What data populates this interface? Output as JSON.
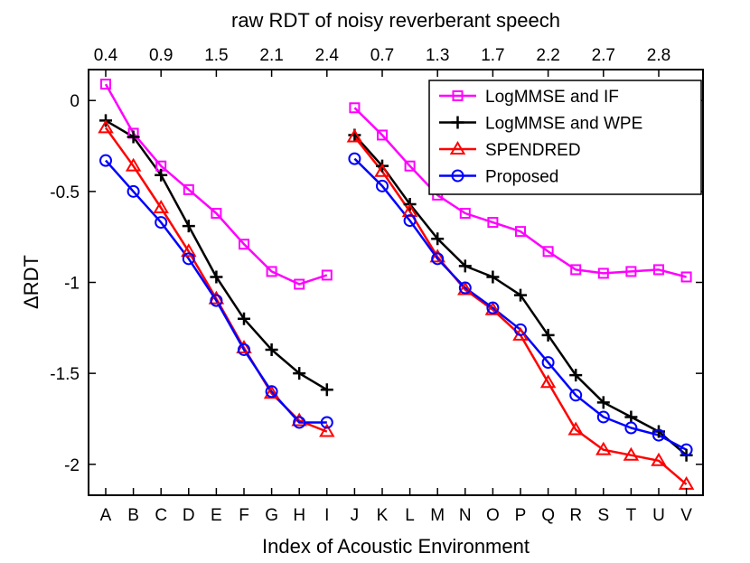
{
  "chart_data": {
    "type": "line",
    "title": "",
    "xlabel": "Index of Acoustic Environment",
    "ylabel": "ΔRDT",
    "top_xlabel": "raw RDT of noisy reverberant speech",
    "categories": [
      "A",
      "B",
      "C",
      "D",
      "E",
      "F",
      "G",
      "H",
      "I",
      "J",
      "K",
      "L",
      "M",
      "N",
      "O",
      "P",
      "Q",
      "R",
      "S",
      "T",
      "U",
      "V"
    ],
    "top_tick_labels": [
      {
        "category": "A",
        "label": "0.4"
      },
      {
        "category": "C",
        "label": "0.9"
      },
      {
        "category": "E",
        "label": "1.5"
      },
      {
        "category": "G",
        "label": "2.1"
      },
      {
        "category": "I",
        "label": "2.4"
      },
      {
        "category": "K",
        "label": "0.7"
      },
      {
        "category": "M",
        "label": "1.3"
      },
      {
        "category": "O",
        "label": "1.7"
      },
      {
        "category": "Q",
        "label": "2.2"
      },
      {
        "category": "S",
        "label": "2.7"
      },
      {
        "category": "U",
        "label": "2.8"
      }
    ],
    "ylim": [
      -2.17,
      0.17
    ],
    "yticks": [
      {
        "value": 0,
        "label": "0"
      },
      {
        "value": -0.5,
        "label": "-0.5"
      },
      {
        "value": -1,
        "label": "-1"
      },
      {
        "value": -1.5,
        "label": "-1.5"
      },
      {
        "value": -2,
        "label": "-2"
      }
    ],
    "segments": [
      [
        0,
        8
      ],
      [
        9,
        21
      ]
    ],
    "legend_position": "top-right",
    "series": [
      {
        "name": "LogMMSE and IF",
        "color": "#ff00ff",
        "marker": "square",
        "values": [
          0.09,
          -0.18,
          -0.36,
          -0.49,
          -0.62,
          -0.79,
          -0.94,
          -1.01,
          -0.96,
          -0.04,
          -0.19,
          -0.36,
          -0.52,
          -0.62,
          -0.67,
          -0.72,
          -0.83,
          -0.93,
          -0.95,
          -0.94,
          -0.93,
          -0.97
        ]
      },
      {
        "name": "LogMMSE and WPE",
        "color": "#000000",
        "marker": "plus",
        "values": [
          -0.11,
          -0.2,
          -0.41,
          -0.69,
          -0.97,
          -1.2,
          -1.37,
          -1.5,
          -1.59,
          -0.19,
          -0.36,
          -0.57,
          -0.76,
          -0.91,
          -0.97,
          -1.07,
          -1.29,
          -1.51,
          -1.66,
          -1.74,
          -1.82,
          -1.95
        ]
      },
      {
        "name": "SPENDRED",
        "color": "#ff0000",
        "marker": "triangle",
        "values": [
          -0.15,
          -0.36,
          -0.59,
          -0.83,
          -1.09,
          -1.36,
          -1.61,
          -1.76,
          -1.82,
          -0.2,
          -0.39,
          -0.61,
          -0.86,
          -1.04,
          -1.15,
          -1.29,
          -1.55,
          -1.81,
          -1.92,
          -1.95,
          -1.98,
          -2.11
        ]
      },
      {
        "name": "Proposed",
        "color": "#0000ff",
        "marker": "circle",
        "values": [
          -0.33,
          -0.5,
          -0.67,
          -0.87,
          -1.1,
          -1.37,
          -1.6,
          -1.77,
          -1.77,
          -0.32,
          -0.47,
          -0.66,
          -0.87,
          -1.03,
          -1.14,
          -1.26,
          -1.44,
          -1.62,
          -1.74,
          -1.8,
          -1.84,
          -1.92
        ]
      }
    ]
  }
}
